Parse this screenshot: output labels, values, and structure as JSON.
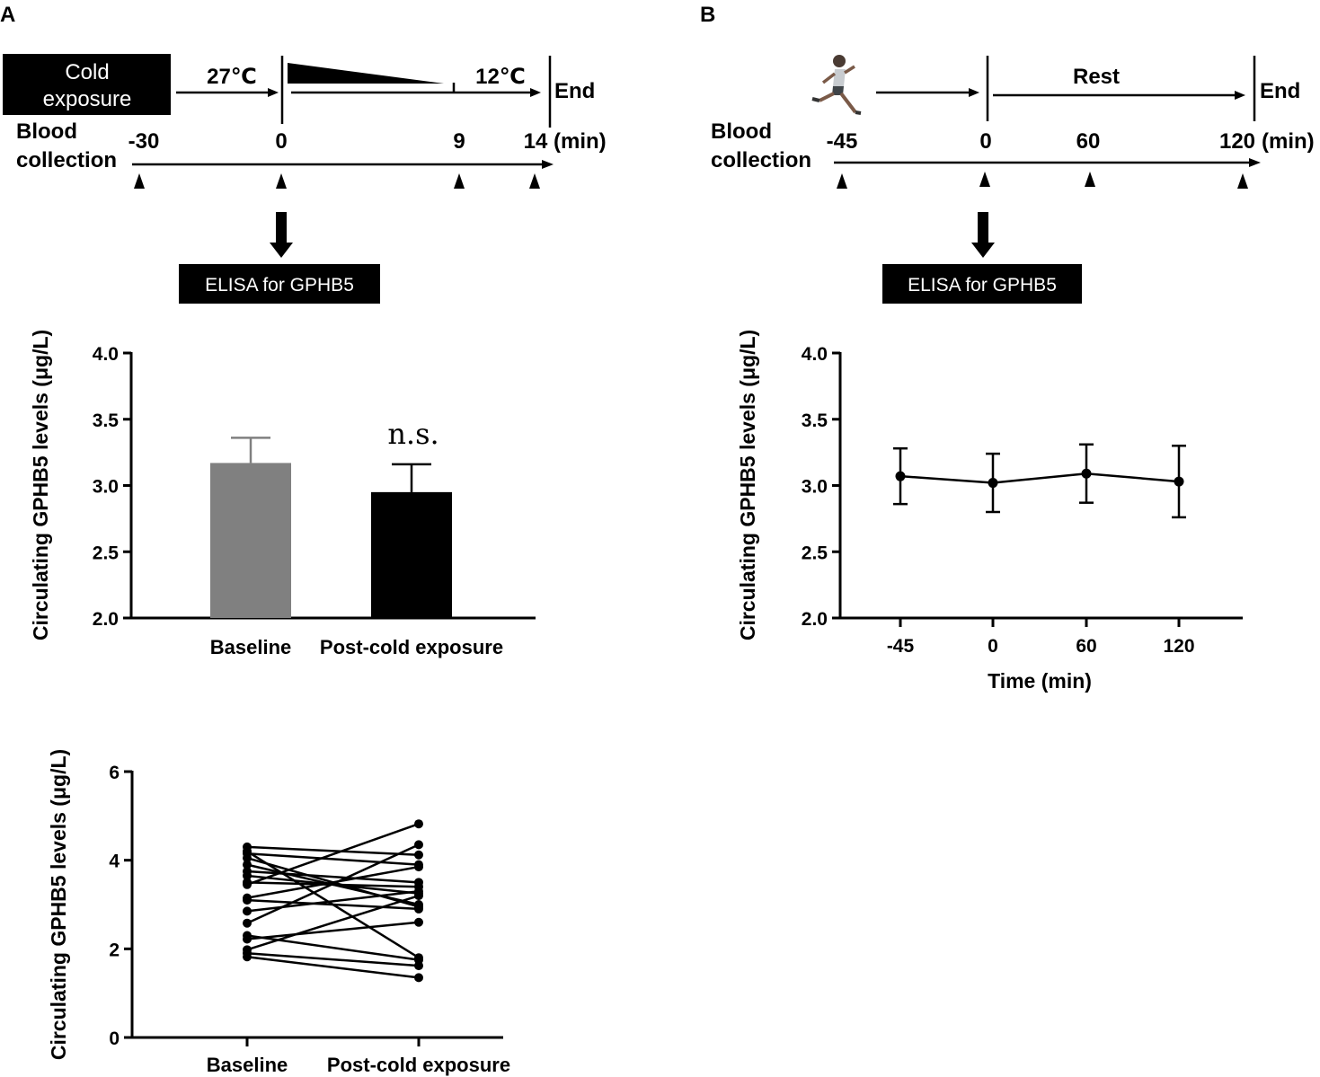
{
  "panel_labels": {
    "a": "A",
    "b": "B"
  },
  "colors": {
    "baseline_bar": "#808080",
    "post_bar": "#000000",
    "ink": "#000000",
    "box_text": "#ffffff"
  },
  "timeline_a": {
    "box_text_line1": "Cold",
    "box_text_line2": "exposure",
    "temp_start": "27℃",
    "temp_end": "12℃",
    "end_label": "End",
    "blood_line1": "Blood",
    "blood_line2": "collection",
    "ticks": [
      "-30",
      "0",
      "9",
      "14"
    ],
    "unit": "(min)",
    "elisa_label": "ELISA for GPHB5"
  },
  "timeline_b": {
    "runner_icon": "runner-icon",
    "rest_label": "Rest",
    "end_label": "End",
    "blood_line1": "Blood",
    "blood_line2": "collection",
    "ticks": [
      "-45",
      "0",
      "60",
      "120"
    ],
    "unit": "(min)",
    "elisa_label": "ELISA for GPHB5"
  },
  "chart_data": [
    {
      "id": "bar-chart-a",
      "type": "bar",
      "categories": [
        "Baseline",
        "Post-cold exposure"
      ],
      "values": [
        3.17,
        2.95
      ],
      "error_upper": [
        0.19,
        0.21
      ],
      "ylabel": "Circulating GPHB5 levels (μg/L)",
      "xlabel": "",
      "ylim": [
        2.0,
        4.0
      ],
      "yticks": [
        "2.0",
        "2.5",
        "3.0",
        "3.5",
        "4.0"
      ],
      "annotation": "n.s."
    },
    {
      "id": "line-chart-b",
      "type": "line",
      "categories": [
        "-45",
        "0",
        "60",
        "120"
      ],
      "values": [
        3.07,
        3.02,
        3.09,
        3.03
      ],
      "error": [
        0.21,
        0.22,
        0.22,
        0.27
      ],
      "ylabel": "Circulating GPHB5 levels (μg/L)",
      "xlabel": "Time (min)",
      "ylim": [
        2.0,
        4.0
      ],
      "yticks": [
        "2.0",
        "2.5",
        "3.0",
        "3.5",
        "4.0"
      ]
    },
    {
      "id": "paired-chart-a",
      "type": "line",
      "categories": [
        "Baseline",
        "Post-cold exposure"
      ],
      "series": [
        {
          "name": "subject-1",
          "values": [
            4.3,
            4.12
          ]
        },
        {
          "name": "subject-2",
          "values": [
            4.2,
            1.8
          ]
        },
        {
          "name": "subject-3",
          "values": [
            4.15,
            3.9
          ]
        },
        {
          "name": "subject-4",
          "values": [
            4.05,
            2.95
          ]
        },
        {
          "name": "subject-5",
          "values": [
            3.9,
            3.0
          ]
        },
        {
          "name": "subject-6",
          "values": [
            3.75,
            3.5
          ]
        },
        {
          "name": "subject-7",
          "values": [
            3.65,
            3.25
          ]
        },
        {
          "name": "subject-8",
          "values": [
            3.5,
            3.4
          ]
        },
        {
          "name": "subject-9",
          "values": [
            3.45,
            4.82
          ]
        },
        {
          "name": "subject-10",
          "values": [
            3.15,
            3.85
          ]
        },
        {
          "name": "subject-11",
          "values": [
            3.1,
            2.9
          ]
        },
        {
          "name": "subject-12",
          "values": [
            2.85,
            3.3
          ]
        },
        {
          "name": "subject-13",
          "values": [
            2.58,
            4.35
          ]
        },
        {
          "name": "subject-14",
          "values": [
            2.3,
            1.75
          ]
        },
        {
          "name": "subject-15",
          "values": [
            2.22,
            2.6
          ]
        },
        {
          "name": "subject-16",
          "values": [
            1.98,
            3.2
          ]
        },
        {
          "name": "subject-17",
          "values": [
            1.9,
            1.62
          ]
        },
        {
          "name": "subject-18",
          "values": [
            1.82,
            1.35
          ]
        }
      ],
      "ylabel": "Circulating GPHB5 levels (μg/L)",
      "xlabel": "",
      "ylim": [
        0,
        6
      ],
      "yticks": [
        "0",
        "2",
        "4",
        "6"
      ]
    }
  ]
}
